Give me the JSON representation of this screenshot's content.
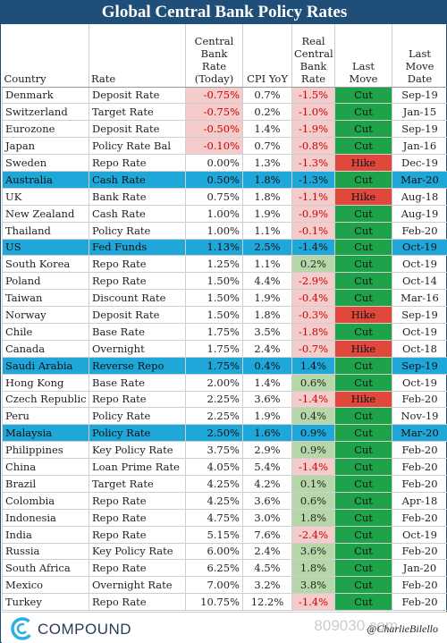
{
  "title": "Global Central Bank Policy Rates",
  "headers": {
    "country": "Country",
    "rate": "Rate",
    "cb_rate": [
      "Central",
      "Bank Rate",
      "(Today)"
    ],
    "cpi": "CPI YoY",
    "real_rate": [
      "Real",
      "Central",
      "Bank",
      "Rate"
    ],
    "last_move": "Last Move",
    "last_move_date": [
      "Last",
      "Move",
      "Date"
    ]
  },
  "colors": {
    "header_bar": "#1f4e79",
    "highlight_row": "#1ea7d8",
    "cut": "#1ea34a",
    "hike": "#e0483c",
    "negative_fill": "#f4cccc",
    "positive_fill": "#b6d7a8",
    "negative_text": "#cc0000"
  },
  "chart_data": {
    "type": "table",
    "title": "Global Central Bank Policy Rates",
    "columns": [
      "Country",
      "Rate",
      "Central Bank Rate (Today)",
      "CPI YoY",
      "Real Central Bank Rate",
      "Last Move",
      "Last Move Date"
    ],
    "rows": [
      {
        "country": "Denmark",
        "rate": "Deposit Rate",
        "cb_rate": "-0.75%",
        "cpi": "0.7%",
        "real": "-1.5%",
        "move": "Cut",
        "date": "Sep-19",
        "highlight": false
      },
      {
        "country": "Switzerland",
        "rate": "Target Rate",
        "cb_rate": "-0.75%",
        "cpi": "0.2%",
        "real": "-1.0%",
        "move": "Cut",
        "date": "Jan-15",
        "highlight": false
      },
      {
        "country": "Eurozone",
        "rate": "Deposit Rate",
        "cb_rate": "-0.50%",
        "cpi": "1.4%",
        "real": "-1.9%",
        "move": "Cut",
        "date": "Sep-19",
        "highlight": false
      },
      {
        "country": "Japan",
        "rate": "Policy Rate Bal",
        "cb_rate": "-0.10%",
        "cpi": "0.7%",
        "real": "-0.8%",
        "move": "Cut",
        "date": "Jan-16",
        "highlight": false
      },
      {
        "country": "Sweden",
        "rate": "Repo Rate",
        "cb_rate": "0.00%",
        "cpi": "1.3%",
        "real": "-1.3%",
        "move": "Hike",
        "date": "Dec-19",
        "highlight": false
      },
      {
        "country": "Australia",
        "rate": "Cash Rate",
        "cb_rate": "0.50%",
        "cpi": "1.8%",
        "real": "-1.3%",
        "move": "Cut",
        "date": "Mar-20",
        "highlight": true
      },
      {
        "country": "UK",
        "rate": "Bank Rate",
        "cb_rate": "0.75%",
        "cpi": "1.8%",
        "real": "-1.1%",
        "move": "Hike",
        "date": "Aug-18",
        "highlight": false
      },
      {
        "country": "New Zealand",
        "rate": "Cash Rate",
        "cb_rate": "1.00%",
        "cpi": "1.9%",
        "real": "-0.9%",
        "move": "Cut",
        "date": "Aug-19",
        "highlight": false
      },
      {
        "country": "Thailand",
        "rate": "Policy Rate",
        "cb_rate": "1.00%",
        "cpi": "1.1%",
        "real": "-0.1%",
        "move": "Cut",
        "date": "Feb-20",
        "highlight": false
      },
      {
        "country": "US",
        "rate": "Fed Funds",
        "cb_rate": "1.13%",
        "cpi": "2.5%",
        "real": "-1.4%",
        "move": "Cut",
        "date": "Oct-19",
        "highlight": true
      },
      {
        "country": "South Korea",
        "rate": "Repo Rate",
        "cb_rate": "1.25%",
        "cpi": "1.1%",
        "real": "0.2%",
        "move": "Cut",
        "date": "Oct-19",
        "highlight": false
      },
      {
        "country": "Poland",
        "rate": "Repo Rate",
        "cb_rate": "1.50%",
        "cpi": "4.4%",
        "real": "-2.9%",
        "move": "Cut",
        "date": "Oct-14",
        "highlight": false
      },
      {
        "country": "Taiwan",
        "rate": "Discount Rate",
        "cb_rate": "1.50%",
        "cpi": "1.9%",
        "real": "-0.4%",
        "move": "Cut",
        "date": "Mar-16",
        "highlight": false
      },
      {
        "country": "Norway",
        "rate": "Deposit Rate",
        "cb_rate": "1.50%",
        "cpi": "1.8%",
        "real": "-0.3%",
        "move": "Hike",
        "date": "Sep-19",
        "highlight": false
      },
      {
        "country": "Chile",
        "rate": "Base Rate",
        "cb_rate": "1.75%",
        "cpi": "3.5%",
        "real": "-1.8%",
        "move": "Cut",
        "date": "Oct-19",
        "highlight": false
      },
      {
        "country": "Canada",
        "rate": "Overnight",
        "cb_rate": "1.75%",
        "cpi": "2.4%",
        "real": "-0.7%",
        "move": "Hike",
        "date": "Oct-18",
        "highlight": false
      },
      {
        "country": "Saudi Arabia",
        "rate": "Reverse Repo",
        "cb_rate": "1.75%",
        "cpi": "0.4%",
        "real": "1.4%",
        "move": "Cut",
        "date": "Sep-19",
        "highlight": true
      },
      {
        "country": "Hong Kong",
        "rate": "Base Rate",
        "cb_rate": "2.00%",
        "cpi": "1.4%",
        "real": "0.6%",
        "move": "Cut",
        "date": "Oct-19",
        "highlight": false
      },
      {
        "country": "Czech Republic",
        "rate": "Repo Rate",
        "cb_rate": "2.25%",
        "cpi": "3.6%",
        "real": "-1.4%",
        "move": "Hike",
        "date": "Feb-20",
        "highlight": false
      },
      {
        "country": "Peru",
        "rate": "Policy Rate",
        "cb_rate": "2.25%",
        "cpi": "1.9%",
        "real": "0.4%",
        "move": "Cut",
        "date": "Nov-19",
        "highlight": false
      },
      {
        "country": "Malaysia",
        "rate": "Policy Rate",
        "cb_rate": "2.50%",
        "cpi": "1.6%",
        "real": "0.9%",
        "move": "Cut",
        "date": "Mar-20",
        "highlight": true
      },
      {
        "country": "Philippines",
        "rate": "Key Policy Rate",
        "cb_rate": "3.75%",
        "cpi": "2.9%",
        "real": "0.9%",
        "move": "Cut",
        "date": "Feb-20",
        "highlight": false
      },
      {
        "country": "China",
        "rate": "Loan Prime Rate",
        "cb_rate": "4.05%",
        "cpi": "5.4%",
        "real": "-1.4%",
        "move": "Cut",
        "date": "Feb-20",
        "highlight": false
      },
      {
        "country": "Brazil",
        "rate": "Target Rate",
        "cb_rate": "4.25%",
        "cpi": "4.2%",
        "real": "0.1%",
        "move": "Cut",
        "date": "Feb-20",
        "highlight": false
      },
      {
        "country": "Colombia",
        "rate": "Repo Rate",
        "cb_rate": "4.25%",
        "cpi": "3.6%",
        "real": "0.6%",
        "move": "Cut",
        "date": "Apr-18",
        "highlight": false
      },
      {
        "country": "Indonesia",
        "rate": "Repo Rate",
        "cb_rate": "4.75%",
        "cpi": "3.0%",
        "real": "1.8%",
        "move": "Cut",
        "date": "Feb-20",
        "highlight": false
      },
      {
        "country": "India",
        "rate": "Repo Rate",
        "cb_rate": "5.15%",
        "cpi": "7.6%",
        "real": "-2.4%",
        "move": "Cut",
        "date": "Oct-19",
        "highlight": false
      },
      {
        "country": "Russia",
        "rate": "Key Policy Rate",
        "cb_rate": "6.00%",
        "cpi": "2.4%",
        "real": "3.6%",
        "move": "Cut",
        "date": "Feb-20",
        "highlight": false
      },
      {
        "country": "South Africa",
        "rate": "Repo Rate",
        "cb_rate": "6.25%",
        "cpi": "4.5%",
        "real": "1.8%",
        "move": "Cut",
        "date": "Jan-20",
        "highlight": false
      },
      {
        "country": "Mexico",
        "rate": "Overnight Rate",
        "cb_rate": "7.00%",
        "cpi": "3.2%",
        "real": "3.8%",
        "move": "Cut",
        "date": "Feb-20",
        "highlight": false
      },
      {
        "country": "Turkey",
        "rate": "Repo Rate",
        "cb_rate": "10.75%",
        "cpi": "12.2%",
        "real": "-1.4%",
        "move": "Cut",
        "date": "Feb-20",
        "highlight": false
      }
    ]
  },
  "footer": {
    "logo_text": "COMPOUND",
    "credit": "@CharlieBilello",
    "watermark": "809030.com"
  }
}
